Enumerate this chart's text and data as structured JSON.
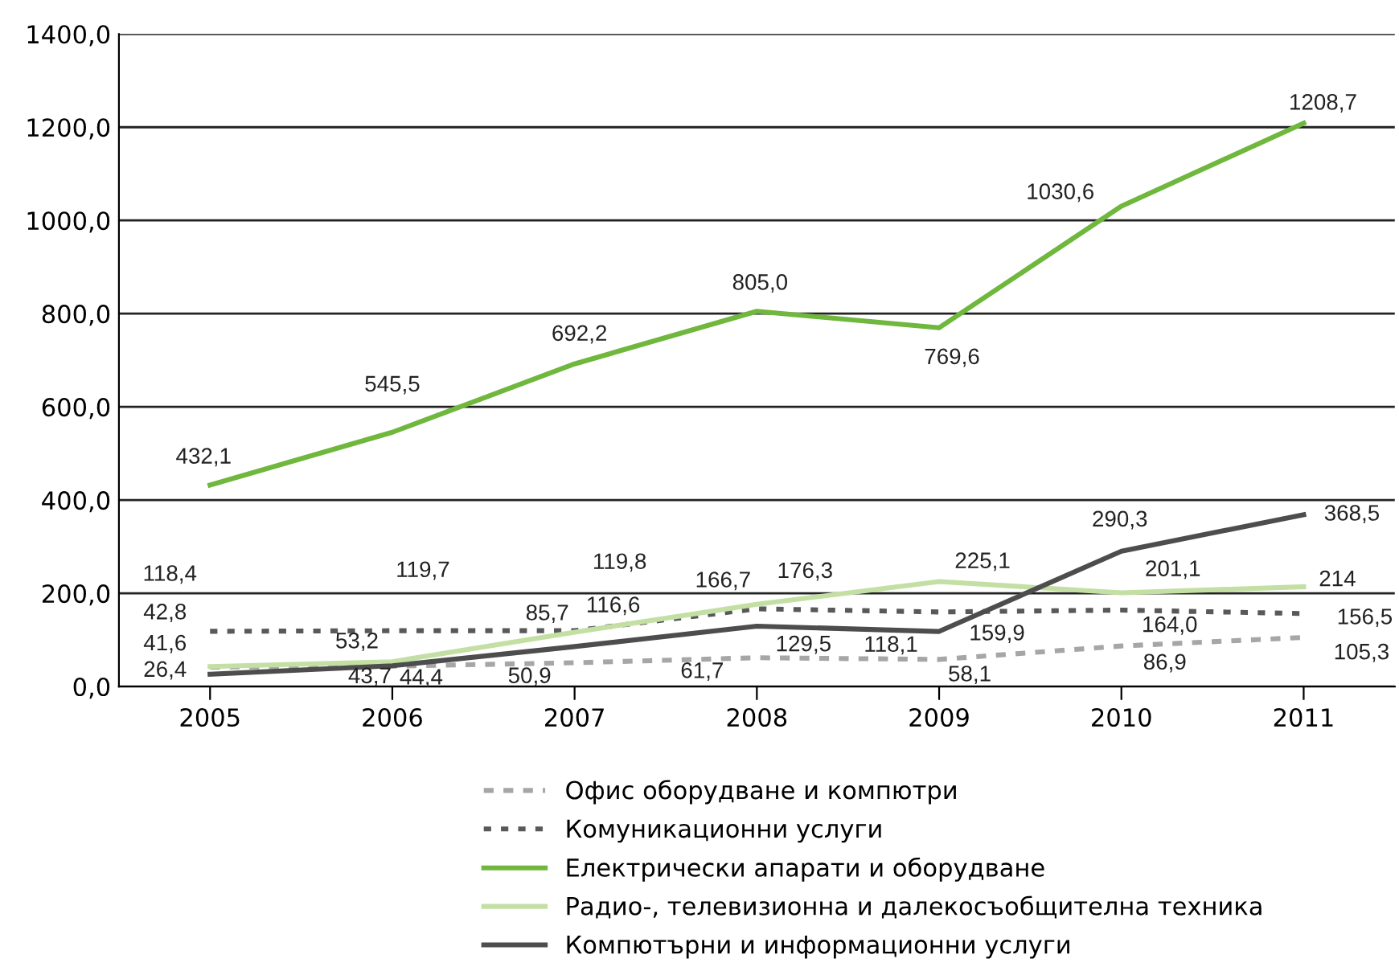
{
  "chart_data": {
    "type": "line",
    "categories": [
      "2005",
      "2006",
      "2007",
      "2008",
      "2009",
      "2010",
      "2011"
    ],
    "ylim": [
      0,
      1400
    ],
    "yticks": [
      {
        "value": 0,
        "label": "0,0"
      },
      {
        "value": 200,
        "label": "200,0"
      },
      {
        "value": 400,
        "label": "400,0"
      },
      {
        "value": 600,
        "label": "600,0"
      },
      {
        "value": 800,
        "label": "800,0"
      },
      {
        "value": 1000,
        "label": "1000,0"
      },
      {
        "value": 1200,
        "label": "1200,0"
      },
      {
        "value": 1400,
        "label": "1400,0"
      }
    ],
    "grid": "y",
    "legend": "bottom",
    "marker": "none",
    "series": [
      {
        "name": "Офис оборудване и компютри",
        "color": "#a6a6a6",
        "line_style": "dashed",
        "values": [
          41.6,
          43.7,
          50.9,
          61.7,
          58.1,
          86.9,
          105.3
        ],
        "value_labels": [
          "41,6",
          "43,7",
          "50,9",
          "61,7",
          "58,1",
          "86,9",
          "105,3"
        ]
      },
      {
        "name": "Комуникационни услуги",
        "color": "#595959",
        "line_style": "dotted",
        "values": [
          118.4,
          119.7,
          119.8,
          166.7,
          159.9,
          164.0,
          156.5
        ],
        "value_labels": [
          "118,4",
          "119,7",
          "119,8",
          "166,7",
          "159,9",
          "164,0",
          "156,5"
        ]
      },
      {
        "name": "Електрически апарати и оборудване",
        "color": "#70b73d",
        "line_style": "solid",
        "values": [
          432.1,
          545.5,
          692.2,
          805.0,
          769.6,
          1030.6,
          1208.7
        ],
        "value_labels": [
          "432,1",
          "545,5",
          "692,2",
          "805,0",
          "769,6",
          "1030,6",
          "1208,7"
        ]
      },
      {
        "name": "Радио-, телевизионна и далекосъобщителна техника",
        "color": "#c4dfa3",
        "line_style": "solid",
        "values": [
          42.8,
          53.2,
          116.6,
          176.3,
          225.1,
          201.1,
          214
        ],
        "value_labels": [
          "42,8",
          "53,2",
          "116,6",
          "176,3",
          "225,1",
          "201,1",
          "214"
        ]
      },
      {
        "name": "Компютърни и информационни услуги",
        "color": "#4d4d4d",
        "line_style": "solid",
        "values": [
          26.4,
          44.4,
          85.7,
          129.5,
          118.1,
          290.3,
          368.5
        ],
        "value_labels": [
          "26,4",
          "44,4",
          "85,7",
          "129,5",
          "118,1",
          "290,3",
          "368,5"
        ]
      }
    ]
  }
}
